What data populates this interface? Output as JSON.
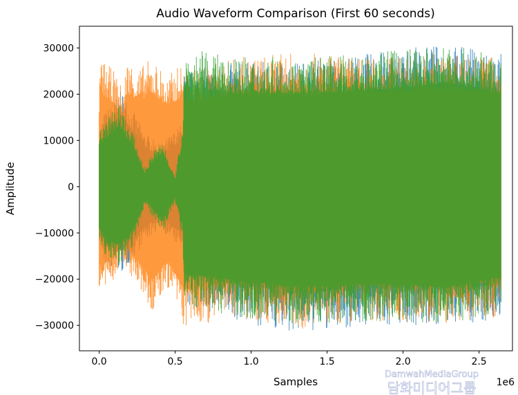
{
  "chart_data": {
    "type": "line",
    "title": "Audio Waveform Comparison (First 60 seconds)",
    "xlabel": "Samples",
    "ylabel": "Amplitude",
    "x_offset_label": "1e6",
    "xlim": [
      -0.13,
      2.72
    ],
    "ylim": [
      -35500,
      34700
    ],
    "xticks": [
      {
        "v": 0,
        "label": "0.0"
      },
      {
        "v": 0.5,
        "label": "0.5"
      },
      {
        "v": 1.0,
        "label": "1.0"
      },
      {
        "v": 1.5,
        "label": "1.5"
      },
      {
        "v": 2.0,
        "label": "2.0"
      },
      {
        "v": 2.5,
        "label": "2.5"
      }
    ],
    "yticks": [
      {
        "v": 30000,
        "label": "30000"
      },
      {
        "v": 20000,
        "label": "20000"
      },
      {
        "v": 10000,
        "label": "10000"
      },
      {
        "v": 0,
        "label": "0"
      },
      {
        "v": -10000,
        "label": "−10000"
      },
      {
        "v": -20000,
        "label": "−20000"
      },
      {
        "v": -30000,
        "label": "−30000"
      }
    ],
    "x_units": "1e6 samples",
    "series": [
      {
        "name": "blue",
        "color": "#1f77b4",
        "envelope": [
          [
            0,
            13000,
            -12000
          ],
          [
            0.03,
            16000,
            -17000
          ],
          [
            0.15,
            21000,
            -19000
          ],
          [
            0.3,
            12000,
            -12000
          ],
          [
            0.4,
            9000,
            -9000
          ],
          [
            0.55,
            14000,
            -14000
          ],
          [
            0.56,
            25000,
            -26000
          ],
          [
            0.9,
            27000,
            -29000
          ],
          [
            1.3,
            27000,
            -32000
          ],
          [
            1.8,
            29000,
            -30000
          ],
          [
            2.3,
            31000,
            -30000
          ],
          [
            2.646,
            29000,
            -29000
          ]
        ]
      },
      {
        "name": "orange",
        "color": "#ff7f0e",
        "envelope": [
          [
            0,
            22000,
            -22000
          ],
          [
            0.01,
            28000,
            -24000
          ],
          [
            0.1,
            25000,
            -20000
          ],
          [
            0.16,
            21000,
            -17000
          ],
          [
            0.18,
            28000,
            -18000
          ],
          [
            0.27,
            26000,
            -23000
          ],
          [
            0.35,
            28000,
            -28000
          ],
          [
            0.45,
            24000,
            -22000
          ],
          [
            0.55,
            27000,
            -30000
          ],
          [
            0.56,
            25000,
            -31000
          ],
          [
            0.9,
            28000,
            -28000
          ],
          [
            1.3,
            29000,
            -31000
          ],
          [
            1.8,
            28000,
            -29000
          ],
          [
            2.3,
            29000,
            -30000
          ],
          [
            2.646,
            28000,
            -28000
          ]
        ]
      },
      {
        "name": "green",
        "color": "#2ca02c",
        "envelope": [
          [
            0,
            12000,
            -12000
          ],
          [
            0.05,
            15000,
            -16000
          ],
          [
            0.13,
            18000,
            -17000
          ],
          [
            0.22,
            12000,
            -13000
          ],
          [
            0.3,
            4000,
            -4000
          ],
          [
            0.36,
            8000,
            -7000
          ],
          [
            0.42,
            10000,
            -10000
          ],
          [
            0.5,
            2000,
            -3000
          ],
          [
            0.55,
            14000,
            -12000
          ],
          [
            0.56,
            30000,
            -26000
          ],
          [
            0.9,
            28000,
            -28000
          ],
          [
            1.3,
            28000,
            -30000
          ],
          [
            1.8,
            29000,
            -29000
          ],
          [
            2.3,
            31000,
            -30000
          ],
          [
            2.646,
            28000,
            -27000
          ]
        ]
      }
    ]
  },
  "watermark": {
    "latin": "DamwahMediaGroup",
    "korean": "담화미디어그룹"
  }
}
